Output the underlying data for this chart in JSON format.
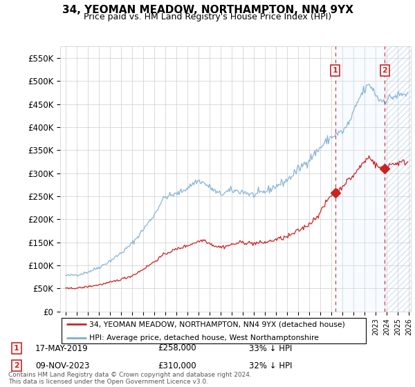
{
  "title": "34, YEOMAN MEADOW, NORTHAMPTON, NN4 9YX",
  "subtitle": "Price paid vs. HM Land Registry's House Price Index (HPI)",
  "legend_line1": "34, YEOMAN MEADOW, NORTHAMPTON, NN4 9YX (detached house)",
  "legend_line2": "HPI: Average price, detached house, West Northamptonshire",
  "annotation1_label": "1",
  "annotation1_date": "17-MAY-2019",
  "annotation1_price": "£258,000",
  "annotation1_hpi": "33% ↓ HPI",
  "annotation2_label": "2",
  "annotation2_date": "09-NOV-2023",
  "annotation2_price": "£310,000",
  "annotation2_hpi": "32% ↓ HPI",
  "footer": "Contains HM Land Registry data © Crown copyright and database right 2024.\nThis data is licensed under the Open Government Licence v3.0.",
  "hpi_color": "#7aadd4",
  "price_color": "#cc2222",
  "vline_color": "#dd3333",
  "box_color": "#cc2222",
  "shade_color": "#ddeeff",
  "ylim": [
    0,
    575000
  ],
  "yticks": [
    0,
    50000,
    100000,
    150000,
    200000,
    250000,
    300000,
    350000,
    400000,
    450000,
    500000,
    550000
  ],
  "ytick_labels": [
    "£0",
    "£50K",
    "£100K",
    "£150K",
    "£200K",
    "£250K",
    "£300K",
    "£350K",
    "£400K",
    "£450K",
    "£500K",
    "£550K"
  ],
  "x_start_year": 1995,
  "x_end_year": 2026,
  "sale1_x": 2019.37,
  "sale2_x": 2023.85,
  "sale1_price": 258000,
  "sale2_price": 310000
}
